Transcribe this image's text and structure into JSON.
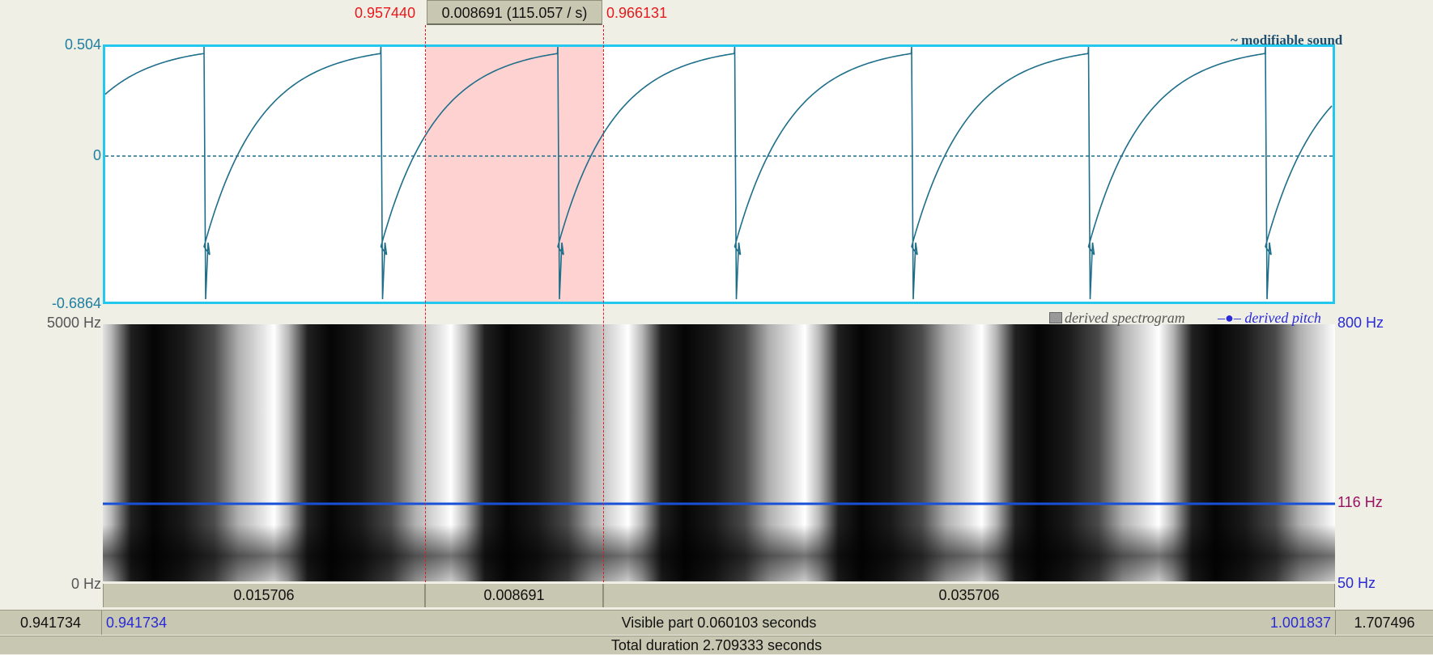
{
  "selection": {
    "start_label": "0.957440",
    "end_label": "0.966131",
    "measure_label": "0.008691 (115.057 / s)"
  },
  "waveform": {
    "title": "~ modifiable sound",
    "y_max_label": "0.504",
    "y_zero_label": "0",
    "y_min_label": "-0.6864",
    "line_color": "#1f6f8b",
    "border_color": "#23c8ee",
    "selection_color": "#ffd2d2"
  },
  "spectrogram": {
    "legend_spectrogram": "derived spectrogram",
    "legend_pitch": "derived pitch",
    "left_top_label": "5000 Hz",
    "left_bottom_label": "0 Hz",
    "right_top_label": "800 Hz",
    "right_mid_label": "116 Hz",
    "right_bottom_label": "50 Hz",
    "pitch_value_hz": 116,
    "pitch_color": "#1a4fd8"
  },
  "segments": [
    "0.015706",
    "0.008691",
    "0.035706"
  ],
  "visible_bar": {
    "left_total_start": "0.941734",
    "visible_start": "0.941734",
    "visible_label": "Visible part 0.060103 seconds",
    "visible_end": "1.001837",
    "right_total_end": "1.707496"
  },
  "total_label": "Total duration 2.709333 seconds"
}
